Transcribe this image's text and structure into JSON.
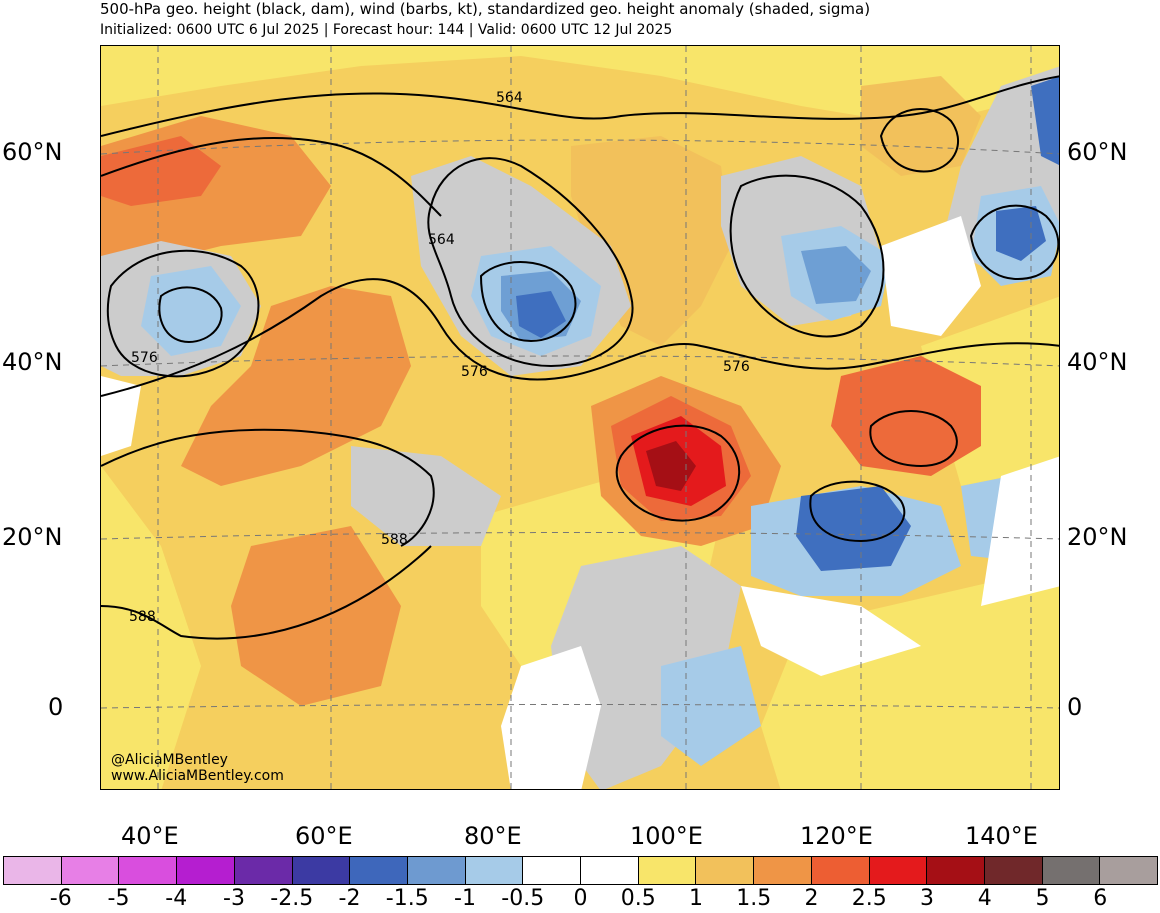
{
  "header": {
    "title": "500-hPa geo. height (black, dam), wind (barbs, kt), standardized geo. height anomaly (shaded, sigma)",
    "subtitle": "Initialized: 0600 UTC 6 Jul 2025 | Forecast hour: 144 | Valid: 0600 UTC 12 Jul 2025"
  },
  "map": {
    "lat_labels": [
      "60°N",
      "40°N",
      "20°N",
      "0"
    ],
    "lon_labels": [
      "40°E",
      "60°E",
      "80°E",
      "100°E",
      "120°E",
      "140°E"
    ],
    "contour_labels": [
      "564",
      "564",
      "576",
      "576",
      "576",
      "588",
      "588"
    ],
    "credit": {
      "handle": "@AliciaMBentley",
      "website": "www.AliciaMBentley.com"
    },
    "colors": {
      "ocean_land_base": "#f5cf5e",
      "yellow": "#f8e56a",
      "light_orange": "#f2c15b",
      "orange": "#ef9546",
      "red_orange": "#ed6a3a",
      "red": "#e41a1c",
      "dark_red": "#a50f15",
      "gray": "#cccccc",
      "light_blue": "#a6cbe8",
      "mid_blue": "#6e9fd4",
      "blue": "#3f6fbf",
      "dark_blue": "#2b3f9e",
      "white": "#ffffff"
    }
  },
  "colorbar": {
    "colors": [
      "#eab6e8",
      "#e77fe6",
      "#d94ede",
      "#b51ed0",
      "#6b2aa8",
      "#3c3aa3",
      "#3e67bb",
      "#6e9ad0",
      "#a6cbe8",
      "#ffffff",
      "#ffffff",
      "#f8e56a",
      "#f2c15b",
      "#ef9546",
      "#ed5e33",
      "#e41a1c",
      "#a50f15",
      "#70282a",
      "#75706f",
      "#a89e9d"
    ],
    "labels": [
      "-6",
      "-5",
      "-4",
      "-3",
      "-2.5",
      "-2",
      "-1.5",
      "-1",
      "-0.5",
      "0",
      "0.5",
      "1",
      "1.5",
      "2",
      "2.5",
      "3",
      "4",
      "5",
      "6"
    ]
  }
}
